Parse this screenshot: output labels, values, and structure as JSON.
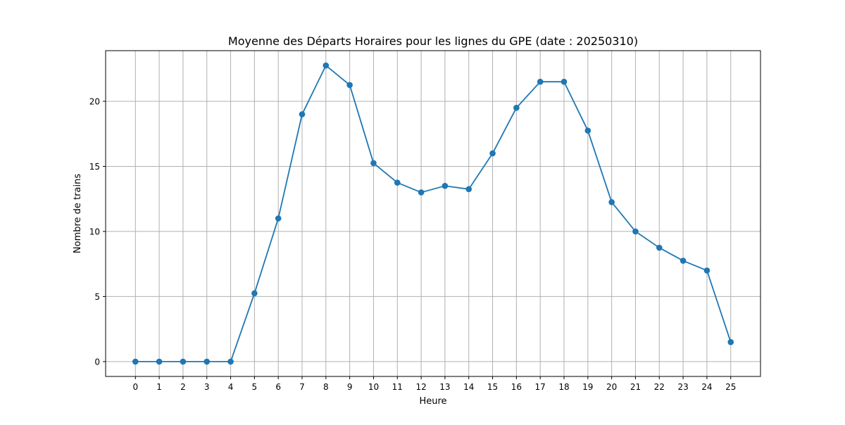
{
  "chart_data": {
    "type": "line",
    "title": "Moyenne des Départs Horaires pour les lignes du GPE (date : 20250310)",
    "xlabel": "Heure",
    "ylabel": "Nombre de trains",
    "x": [
      0,
      1,
      2,
      3,
      4,
      5,
      6,
      7,
      8,
      9,
      10,
      11,
      12,
      13,
      14,
      15,
      16,
      17,
      18,
      19,
      20,
      21,
      22,
      23,
      24,
      25
    ],
    "series": [
      {
        "values": [
          0,
          0,
          0,
          0,
          0,
          5.25,
          11,
          19,
          22.75,
          21.25,
          15.25,
          13.75,
          13,
          13.5,
          13.25,
          16,
          19.5,
          21.5,
          21.5,
          17.75,
          12.25,
          10,
          8.75,
          7.75,
          7,
          1.5
        ],
        "color": "#1f77b4",
        "marker": "circle"
      }
    ],
    "xlim": [
      -1.25,
      26.25
    ],
    "ylim": [
      -1.14,
      23.89
    ],
    "xticks": [
      0,
      1,
      2,
      3,
      4,
      5,
      6,
      7,
      8,
      9,
      10,
      11,
      12,
      13,
      14,
      15,
      16,
      17,
      18,
      19,
      20,
      21,
      22,
      23,
      24,
      25
    ],
    "yticks": [
      0,
      5,
      10,
      15,
      20
    ],
    "grid": true,
    "legend": "none"
  }
}
